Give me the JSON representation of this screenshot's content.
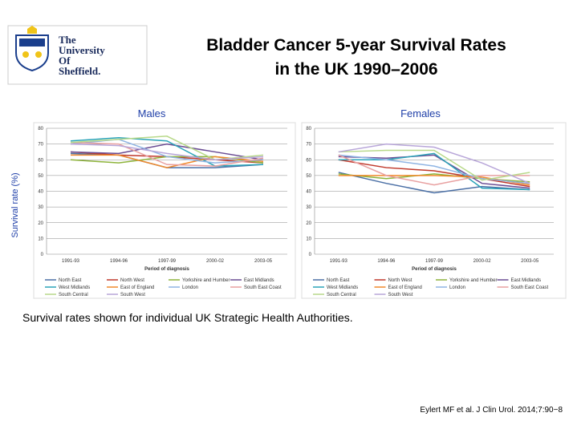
{
  "header": {
    "logo_lines": [
      "The",
      "University",
      "Of",
      "Sheffield."
    ],
    "title_lines": [
      "Bladder Cancer 5-year Survival Rates",
      "in the UK 1990–2006"
    ]
  },
  "y_axis_label": "Survival rate (%)",
  "caption": "Survival rates shown for individual UK Strategic Health Authorities.",
  "citation": "Eylert MF et al. J Clin Urol. 2014;7:90−8",
  "chart_data": [
    {
      "type": "line",
      "title": "Males",
      "xlabel": "Period of diagnosis",
      "categories": [
        "1991-93",
        "1994-96",
        "1997-99",
        "2000-02",
        "2003-05"
      ],
      "ylim": [
        0,
        80
      ],
      "yticks": [
        0,
        10,
        20,
        30,
        40,
        50,
        60,
        70,
        80
      ],
      "grid": true,
      "series": [
        {
          "name": "North East",
          "color": "#4a6fa5",
          "values": [
            64,
            63,
            55,
            55,
            57
          ]
        },
        {
          "name": "North West",
          "color": "#c0392b",
          "values": [
            65,
            63,
            62,
            60,
            58
          ]
        },
        {
          "name": "Yorkshire and Humber",
          "color": "#8db33a",
          "values": [
            60,
            58,
            62,
            62,
            58
          ]
        },
        {
          "name": "East Midlands",
          "color": "#6a4c93",
          "values": [
            65,
            64,
            70,
            65,
            60
          ]
        },
        {
          "name": "West Midlands",
          "color": "#2aa3b8",
          "values": [
            72,
            74,
            72,
            56,
            57
          ]
        },
        {
          "name": "East of England",
          "color": "#f0892b",
          "values": [
            63,
            63,
            55,
            62,
            59
          ]
        },
        {
          "name": "London",
          "color": "#8fb4e3",
          "values": [
            70,
            73,
            62,
            58,
            60
          ]
        },
        {
          "name": "South East Coast",
          "color": "#e8a0a0",
          "values": [
            71,
            70,
            57,
            56,
            61
          ]
        },
        {
          "name": "South Central",
          "color": "#b8d98a",
          "values": [
            71,
            73,
            75,
            60,
            63
          ]
        },
        {
          "name": "South West",
          "color": "#b8a6d9",
          "values": [
            70,
            69,
            64,
            60,
            62
          ]
        }
      ]
    },
    {
      "type": "line",
      "title": "Females",
      "xlabel": "Period of diagnosis",
      "categories": [
        "1991-93",
        "1994-96",
        "1997-99",
        "2000-02",
        "2003-05"
      ],
      "ylim": [
        0,
        80
      ],
      "yticks": [
        0,
        10,
        20,
        30,
        40,
        50,
        60,
        70,
        80
      ],
      "grid": true,
      "series": [
        {
          "name": "North East",
          "color": "#4a6fa5",
          "values": [
            52,
            45,
            39,
            43,
            41
          ]
        },
        {
          "name": "North West",
          "color": "#c0392b",
          "values": [
            60,
            55,
            53,
            48,
            43
          ]
        },
        {
          "name": "Yorkshire and Humber",
          "color": "#8db33a",
          "values": [
            51,
            48,
            51,
            48,
            46
          ]
        },
        {
          "name": "East Midlands",
          "color": "#6a4c93",
          "values": [
            62,
            61,
            63,
            45,
            42
          ]
        },
        {
          "name": "West Midlands",
          "color": "#2aa3b8",
          "values": [
            60,
            60,
            64,
            42,
            41
          ]
        },
        {
          "name": "East of England",
          "color": "#f0892b",
          "values": [
            50,
            50,
            50,
            49,
            44
          ]
        },
        {
          "name": "London",
          "color": "#8fb4e3",
          "values": [
            63,
            60,
            56,
            48,
            45
          ]
        },
        {
          "name": "South East Coast",
          "color": "#e8a0a0",
          "values": [
            63,
            50,
            44,
            50,
            50
          ]
        },
        {
          "name": "South Central",
          "color": "#b8d98a",
          "values": [
            65,
            66,
            66,
            47,
            52
          ]
        },
        {
          "name": "South West",
          "color": "#b8a6d9",
          "values": [
            65,
            70,
            68,
            58,
            45
          ]
        }
      ]
    }
  ]
}
